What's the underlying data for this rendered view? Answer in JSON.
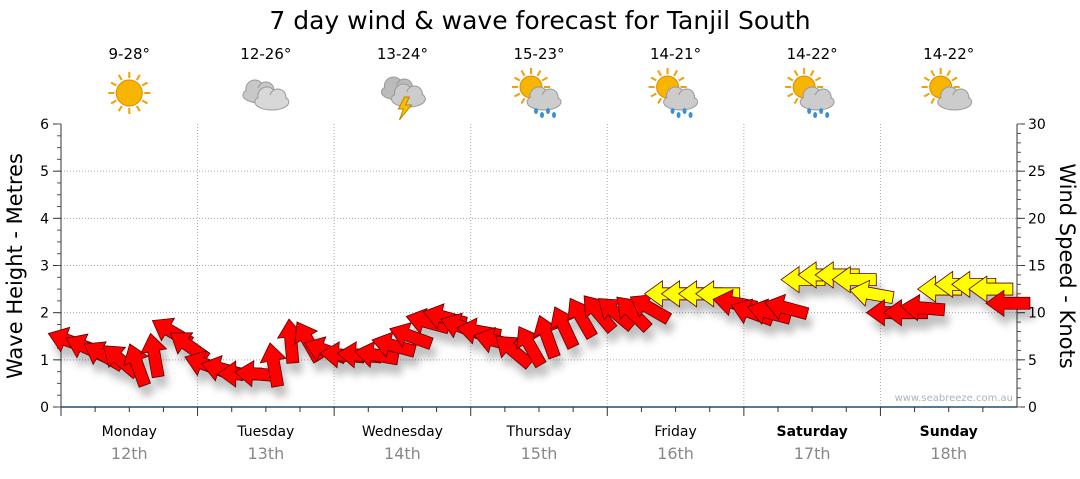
{
  "chart_data": {
    "type": "scatter",
    "title": "7 day wind & wave forecast for Tanjil South",
    "ylabel": "Wave Height - Metres",
    "y2label": "Wind Speed - Knots",
    "ylim": [
      0,
      6
    ],
    "y2lim": [
      0,
      30
    ],
    "yticks": [
      "0",
      "1",
      "2",
      "3",
      "4",
      "5",
      "6"
    ],
    "y2ticks": [
      "0",
      "5",
      "10",
      "15",
      "20",
      "25",
      "30"
    ],
    "grid": true,
    "watermark": "www.seabreeze.com.au",
    "days": [
      {
        "name": "Monday",
        "date": "12th",
        "bold": false,
        "temp": "9-28°",
        "icon": "sunny"
      },
      {
        "name": "Tuesday",
        "date": "13th",
        "bold": false,
        "temp": "12-26°",
        "icon": "cloudy"
      },
      {
        "name": "Wednesday",
        "date": "14th",
        "bold": false,
        "temp": "13-24°",
        "icon": "storm"
      },
      {
        "name": "Thursday",
        "date": "15th",
        "bold": false,
        "temp": "15-23°",
        "icon": "sun-showers"
      },
      {
        "name": "Friday",
        "date": "16th",
        "bold": false,
        "temp": "14-21°",
        "icon": "sun-showers"
      },
      {
        "name": "Saturday",
        "date": "17th",
        "bold": true,
        "temp": "14-22°",
        "icon": "sun-showers"
      },
      {
        "name": "Sunday",
        "date": "18th",
        "bold": true,
        "temp": "14-22°",
        "icon": "partly-cloudy"
      }
    ],
    "colors": {
      "strong": "#ff0000",
      "moderate": "#ffff00"
    },
    "wind_interval_hours": 3,
    "wind_knots": [
      7,
      6.3,
      5.5,
      5,
      4.5,
      5.5,
      8,
      6.5,
      4.5,
      4,
      3.5,
      3.5,
      4.5,
      7,
      7,
      6,
      5.5,
      5.5,
      5.5,
      6.5,
      7.5,
      9,
      9.5,
      8.5,
      8,
      7,
      6,
      6.5,
      7.5,
      8.5,
      9.5,
      10,
      10,
      10,
      10.5,
      12,
      12,
      12,
      12,
      11,
      10,
      10,
      10.5,
      13.5,
      14,
      14,
      13.5,
      12,
      10,
      10,
      10.5,
      12.5,
      13,
      13,
      12.5,
      11
    ],
    "wind_arrow_angle_deg": [
      160,
      155,
      150,
      140,
      110,
      100,
      150,
      145,
      160,
      165,
      180,
      175,
      100,
      95,
      120,
      160,
      175,
      175,
      170,
      165,
      160,
      165,
      165,
      160,
      170,
      165,
      140,
      120,
      110,
      115,
      120,
      130,
      140,
      135,
      150,
      180,
      180,
      180,
      180,
      170,
      160,
      165,
      165,
      180,
      180,
      180,
      180,
      170,
      180,
      180,
      175,
      180,
      180,
      180,
      180,
      180
    ],
    "wind_color": [
      "strong",
      "strong",
      "strong",
      "strong",
      "strong",
      "strong",
      "strong",
      "strong",
      "strong",
      "strong",
      "strong",
      "strong",
      "strong",
      "strong",
      "strong",
      "strong",
      "strong",
      "strong",
      "strong",
      "strong",
      "strong",
      "strong",
      "strong",
      "strong",
      "strong",
      "strong",
      "strong",
      "strong",
      "strong",
      "strong",
      "strong",
      "strong",
      "strong",
      "strong",
      "strong",
      "moderate",
      "moderate",
      "moderate",
      "moderate",
      "strong",
      "strong",
      "strong",
      "strong",
      "moderate",
      "moderate",
      "moderate",
      "moderate",
      "moderate",
      "strong",
      "strong",
      "strong",
      "moderate",
      "moderate",
      "moderate",
      "moderate",
      "strong"
    ]
  }
}
